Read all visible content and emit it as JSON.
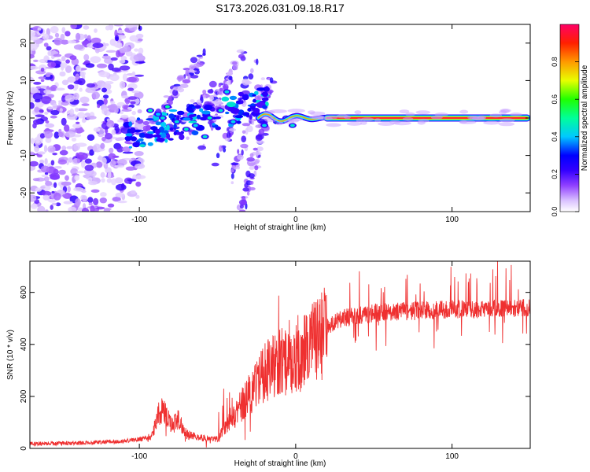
{
  "title": "S173.2026.031.09.18.R17",
  "chart_data": [
    {
      "type": "heatmap",
      "title": "S173.2026.031.09.18.R17",
      "xlabel": "Height of straight line (km)",
      "ylabel": "Frequency (Hz)",
      "xlim": [
        -170,
        150
      ],
      "ylim": [
        -25,
        25
      ],
      "x_ticks": [
        -100,
        0,
        100
      ],
      "x_tick_labels": [
        "-100",
        "0",
        "100"
      ],
      "y_ticks": [
        -20,
        -10,
        0,
        10,
        20
      ],
      "y_tick_labels": [
        "-20",
        "-10",
        "0",
        "10",
        "20"
      ],
      "grid": false,
      "colorbar": {
        "label": "Normalized spectral amplitude",
        "range": [
          0,
          1
        ],
        "ticks": [
          0.0,
          0.2,
          0.4,
          0.6,
          0.8
        ],
        "tick_labels": [
          "0.0",
          "0.2",
          "0.4",
          "0.6",
          "0.8"
        ],
        "colors": [
          "#ffffff",
          "#c8a8ff",
          "#8a2be2",
          "#4400ff",
          "#0000ff",
          "#00ffff",
          "#00ff00",
          "#ffff00",
          "#ff7f00",
          "#ff0000",
          "#ff0080"
        ]
      },
      "features": {
        "noise_region_x": [
          -170,
          -105
        ],
        "transition_region_x": [
          -105,
          -20
        ],
        "carrier_start_x": 20,
        "carrier_frequency": 0,
        "carrier_amplitude": 0.95
      }
    },
    {
      "type": "line",
      "xlabel": "Height of straight line (km)",
      "ylabel": "SNR (10 * v/v)",
      "xlim": [
        -170,
        150
      ],
      "ylim": [
        0,
        720
      ],
      "x_ticks": [
        -100,
        0,
        100
      ],
      "x_tick_labels": [
        "-100",
        "0",
        "100"
      ],
      "y_ticks": [
        0,
        200,
        400,
        600
      ],
      "y_tick_labels": [
        "0",
        "200",
        "400",
        "600"
      ],
      "line_color": "#ef3030",
      "series": [
        {
          "name": "SNR",
          "x": [
            -170,
            -150,
            -130,
            -110,
            -100,
            -92,
            -88,
            -85,
            -80,
            -75,
            -70,
            -60,
            -50,
            -45,
            -40,
            -35,
            -30,
            -25,
            -20,
            -15,
            -10,
            -5,
            0,
            5,
            10,
            15,
            20,
            25,
            30,
            40,
            50,
            60,
            80,
            100,
            120,
            140,
            150
          ],
          "values": [
            18,
            20,
            22,
            28,
            35,
            45,
            130,
            150,
            95,
            110,
            55,
            40,
            35,
            80,
            120,
            160,
            210,
            240,
            290,
            310,
            340,
            330,
            340,
            370,
            400,
            420,
            460,
            490,
            500,
            510,
            520,
            525,
            530,
            535,
            535,
            540,
            540
          ]
        }
      ]
    }
  ]
}
